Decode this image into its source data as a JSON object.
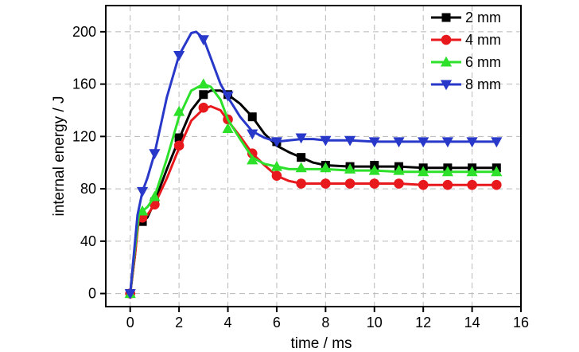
{
  "chart_data": {
    "type": "line",
    "xlabel": "time / ms",
    "ylabel": "internal energy / J",
    "xlim": [
      -1,
      16
    ],
    "ylim": [
      -10,
      220
    ],
    "xticks": [
      0,
      2,
      4,
      6,
      8,
      10,
      12,
      14,
      16
    ],
    "yticks": [
      0,
      40,
      80,
      120,
      160,
      200
    ],
    "grid": true,
    "legend_position": "top-right",
    "series": [
      {
        "name": "2 mm",
        "color": "#000000",
        "marker": "square",
        "curve_x": [
          0,
          0.2,
          0.35,
          0.5,
          0.7,
          1,
          1.5,
          2,
          2.5,
          3,
          3.3,
          3.7,
          4,
          4.5,
          5,
          5.5,
          6,
          6.5,
          7,
          7.5,
          8,
          9,
          10,
          11,
          12,
          13,
          14,
          15
        ],
        "curve_y": [
          0,
          30,
          62,
          55,
          58,
          70,
          95,
          118,
          140,
          152,
          155,
          155,
          152,
          145,
          135,
          122,
          113,
          108,
          104,
          100,
          98,
          97,
          97,
          97,
          96,
          96,
          96,
          96
        ],
        "markers_x": [
          0,
          0.5,
          1,
          2,
          3,
          4,
          5,
          6,
          7,
          8,
          9,
          10,
          11,
          12,
          13,
          14,
          15
        ],
        "markers_y": [
          0,
          55,
          70,
          119,
          152,
          152,
          135,
          116,
          104,
          98,
          97,
          98,
          97,
          96,
          96,
          96,
          96
        ]
      },
      {
        "name": "4 mm",
        "color": "#e8191d",
        "marker": "circle",
        "curve_x": [
          0,
          0.2,
          0.35,
          0.5,
          0.7,
          1,
          1.5,
          2,
          2.5,
          3,
          3.3,
          3.7,
          4,
          4.5,
          5,
          5.5,
          6,
          6.5,
          7,
          7.5,
          8,
          9,
          10,
          11,
          12,
          13,
          14,
          15
        ],
        "curve_y": [
          0,
          30,
          57,
          58,
          60,
          68,
          88,
          111,
          132,
          141,
          143,
          140,
          132,
          120,
          107,
          98,
          90,
          86,
          84,
          84,
          84,
          84,
          84,
          84,
          83,
          83,
          83,
          83
        ],
        "markers_x": [
          0,
          0.5,
          1,
          2,
          3,
          4,
          5,
          6,
          7,
          8,
          9,
          10,
          11,
          12,
          13,
          14,
          15
        ],
        "markers_y": [
          0,
          58,
          68,
          113,
          142,
          133,
          107,
          90,
          84,
          84,
          84,
          84,
          84,
          83,
          83,
          83,
          83
        ]
      },
      {
        "name": "6 mm",
        "color": "#2de02a",
        "marker": "triangle-up",
        "curve_x": [
          0,
          0.2,
          0.35,
          0.5,
          0.7,
          1,
          1.5,
          2,
          2.5,
          3,
          3.3,
          3.7,
          4,
          4.5,
          5,
          5.5,
          6,
          6.5,
          7,
          7.5,
          8,
          9,
          10,
          11,
          12,
          13,
          14,
          15
        ],
        "curve_y": [
          0,
          35,
          60,
          63,
          66,
          74,
          103,
          135,
          155,
          160,
          158,
          148,
          133,
          118,
          104,
          99,
          97,
          95,
          95,
          95,
          95,
          94,
          94,
          93,
          93,
          93,
          93,
          93
        ],
        "markers_x": [
          0,
          0.5,
          1,
          2,
          3,
          4,
          5,
          6,
          7,
          8,
          9,
          10,
          11,
          12,
          13,
          14,
          15
        ],
        "markers_y": [
          0,
          63,
          74,
          139,
          160,
          126,
          102,
          97,
          96,
          96,
          95,
          94,
          94,
          93,
          93,
          93,
          93
        ]
      },
      {
        "name": "8 mm",
        "color": "#2838c8",
        "marker": "triangle-down",
        "curve_x": [
          0,
          0.15,
          0.3,
          0.5,
          0.7,
          1,
          1.5,
          2,
          2.5,
          2.7,
          3,
          3.3,
          3.7,
          4,
          4.5,
          5,
          5.5,
          6,
          6.5,
          7,
          7.5,
          8,
          9,
          10,
          11,
          12,
          13,
          14,
          15
        ],
        "curve_y": [
          0,
          30,
          60,
          78,
          88,
          107,
          150,
          182,
          199,
          200,
          195,
          180,
          160,
          150,
          135,
          124,
          119,
          116,
          117,
          118,
          118,
          117,
          117,
          116,
          116,
          116,
          116,
          116,
          116
        ],
        "markers_x": [
          0,
          0.5,
          1,
          2,
          3,
          4,
          5,
          6,
          7,
          8,
          9,
          10,
          11,
          12,
          13,
          14,
          15
        ],
        "markers_y": [
          0,
          78,
          107,
          182,
          194,
          151,
          122,
          116,
          119,
          117,
          117,
          116,
          116,
          116,
          116,
          116,
          116
        ]
      }
    ]
  }
}
